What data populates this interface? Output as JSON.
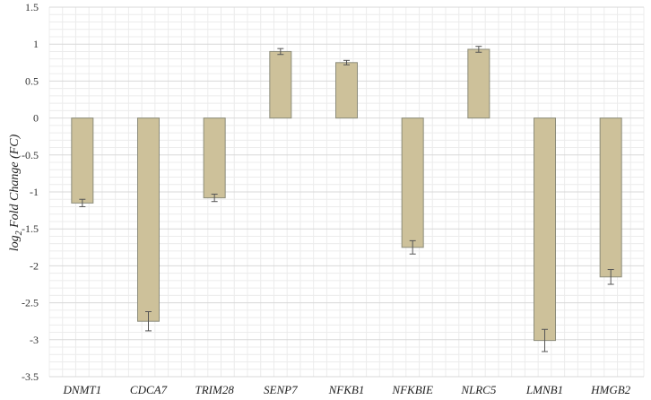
{
  "chart_data": {
    "type": "bar",
    "title": "",
    "xlabel": "",
    "ylabel": "log2 Fold Change (FC)",
    "ylabel_parts": {
      "prefix": "log",
      "subscript": "2",
      "suffix": " Fold Change (FC)"
    },
    "ylim": [
      -3.5,
      1.5
    ],
    "yticks": [
      1.5,
      1,
      0.5,
      0,
      -0.5,
      -1,
      -1.5,
      -2,
      -2.5,
      -3,
      -3.5
    ],
    "ytick_labels": [
      "1.5",
      "1",
      "0.5",
      "0",
      "-0.5",
      "-1",
      "-1.5",
      "-2",
      "-2.5",
      "-3",
      "-3.5"
    ],
    "grid": true,
    "legend": "none",
    "bar_color": "#cdc19a",
    "categories": [
      "DNMT1",
      "CDCA7",
      "TRIM28",
      "SENP7",
      "NFKB1",
      "NFKBIE",
      "NLRC5",
      "LMNB1",
      "HMGB2"
    ],
    "values": [
      -1.15,
      -2.75,
      -1.08,
      0.9,
      0.75,
      -1.75,
      0.93,
      -3.01,
      -2.15
    ],
    "errors": [
      0.05,
      0.13,
      0.05,
      0.04,
      0.03,
      0.09,
      0.04,
      0.15,
      0.1
    ]
  }
}
